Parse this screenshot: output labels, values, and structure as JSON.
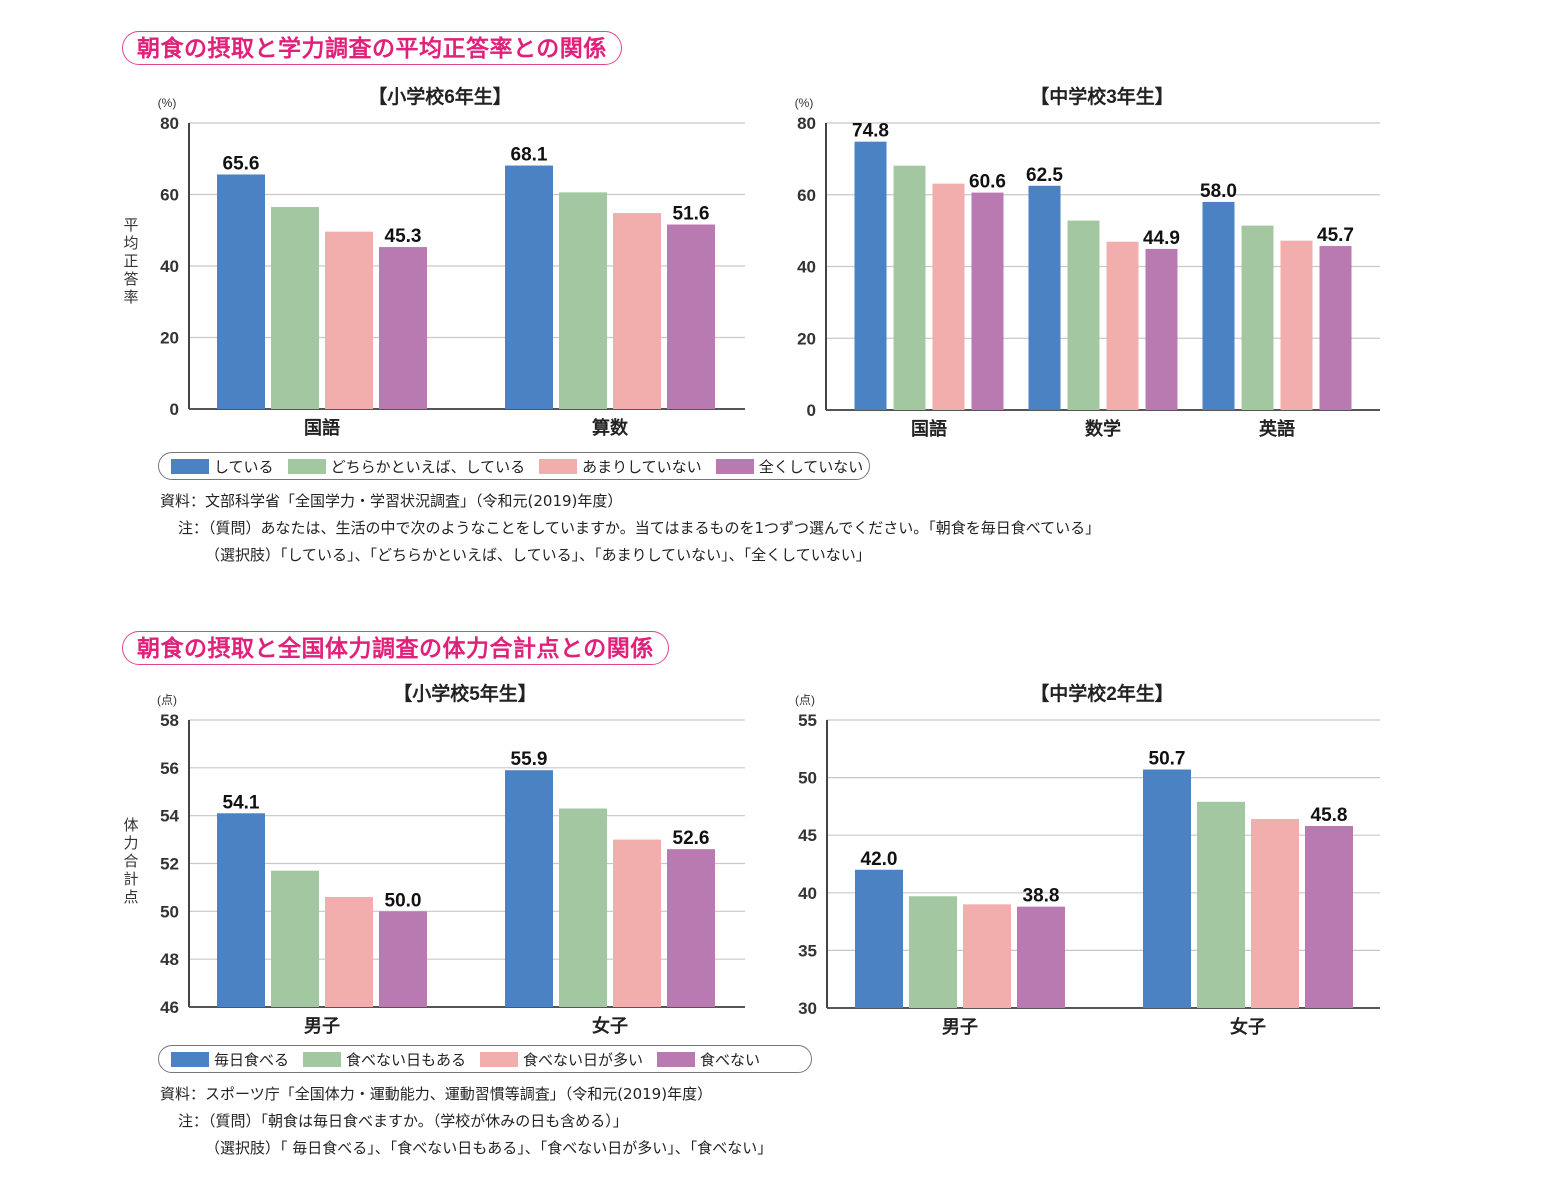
{
  "sections": [
    {
      "title": "朝食の摂取と学力調査の平均正答率との関係",
      "legend": [
        "している",
        "どちらかといえば、している",
        "あまりしていない",
        "全くしていない"
      ],
      "source": "資料：文部科学省「全国学力・学習状況調査」（令和元(2019)年度）",
      "note1": "注：（質問）あなたは、生活の中で次のようなことをしていますか。当てはまるものを1つずつ選んでください。「朝食を毎日食べている」",
      "note2": "（選択肢）「している」、「どちらかといえば、している」、「あまりしていない」、「全くしていない」"
    },
    {
      "title": "朝食の摂取と全国体力調査の体力合計点との関係",
      "legend": [
        "毎日食べる",
        "食べない日もある",
        "食べない日が多い",
        "食べない"
      ],
      "source": "資料：スポーツ庁「全国体力・運動能力、運動習慣等調査」（令和元(2019)年度）",
      "note1": "注：（質問）「朝食は毎日食べますか。（学校が休みの日も含める）」",
      "note2": "（選択肢）「 毎日食べる」、「食べない日もある」、「食べない日が多い」、「食べない」"
    }
  ],
  "colors": [
    "#4a82c3",
    "#a3c8a1",
    "#f2aeac",
    "#b87ab1"
  ],
  "chart_data": [
    {
      "type": "bar",
      "title": "【小学校6年生】",
      "unit": "(%)",
      "ylabel": "平均正答率",
      "xlabel": "",
      "ylim": [
        0,
        80
      ],
      "yticks": [
        0,
        20,
        40,
        60,
        80
      ],
      "grid": true,
      "categories": [
        "国語",
        "算数"
      ],
      "series": [
        {
          "name": "している",
          "values": [
            65.6,
            68.1
          ]
        },
        {
          "name": "どちらかといえば、している",
          "values": [
            56.5,
            60.6
          ]
        },
        {
          "name": "あまりしていない",
          "values": [
            49.6,
            54.8
          ]
        },
        {
          "name": "全くしていない",
          "values": [
            45.3,
            51.6
          ]
        }
      ],
      "data_labels": [
        {
          "series": 0,
          "category": 0,
          "text": "65.6"
        },
        {
          "series": 3,
          "category": 0,
          "text": "45.3"
        },
        {
          "series": 0,
          "category": 1,
          "text": "68.1"
        },
        {
          "series": 3,
          "category": 1,
          "text": "51.6"
        }
      ],
      "legend_position": "bottom"
    },
    {
      "type": "bar",
      "title": "【中学校3年生】",
      "unit": "(%)",
      "ylabel": "",
      "xlabel": "",
      "ylim": [
        0,
        80
      ],
      "yticks": [
        0,
        20,
        40,
        60,
        80
      ],
      "grid": true,
      "categories": [
        "国語",
        "数学",
        "英語"
      ],
      "series": [
        {
          "name": "している",
          "values": [
            74.8,
            62.5,
            58.0
          ]
        },
        {
          "name": "どちらかといえば、している",
          "values": [
            68.1,
            52.8,
            51.4
          ]
        },
        {
          "name": "あまりしていない",
          "values": [
            63.1,
            46.9,
            47.2
          ]
        },
        {
          "name": "全くしていない",
          "values": [
            60.6,
            44.9,
            45.7
          ]
        }
      ],
      "data_labels": [
        {
          "series": 0,
          "category": 0,
          "text": "74.8"
        },
        {
          "series": 3,
          "category": 0,
          "text": "60.6"
        },
        {
          "series": 0,
          "category": 1,
          "text": "62.5"
        },
        {
          "series": 3,
          "category": 1,
          "text": "44.9"
        },
        {
          "series": 0,
          "category": 2,
          "text": "58.0"
        },
        {
          "series": 3,
          "category": 2,
          "text": "45.7"
        }
      ],
      "legend_position": "bottom"
    },
    {
      "type": "bar",
      "title": "【小学校5年生】",
      "unit": "(点)",
      "ylabel": "体力合計点",
      "xlabel": "",
      "ylim": [
        46,
        58
      ],
      "yticks": [
        46,
        48,
        50,
        52,
        54,
        56,
        58
      ],
      "grid": true,
      "categories": [
        "男子",
        "女子"
      ],
      "series": [
        {
          "name": "毎日食べる",
          "values": [
            54.1,
            55.9
          ]
        },
        {
          "name": "食べない日もある",
          "values": [
            51.7,
            54.3
          ]
        },
        {
          "name": "食べない日が多い",
          "values": [
            50.6,
            53.0
          ]
        },
        {
          "name": "食べない",
          "values": [
            50.0,
            52.6
          ]
        }
      ],
      "data_labels": [
        {
          "series": 0,
          "category": 0,
          "text": "54.1"
        },
        {
          "series": 3,
          "category": 0,
          "text": "50.0"
        },
        {
          "series": 0,
          "category": 1,
          "text": "55.9"
        },
        {
          "series": 3,
          "category": 1,
          "text": "52.6"
        }
      ],
      "legend_position": "bottom"
    },
    {
      "type": "bar",
      "title": "【中学校2年生】",
      "unit": "(点)",
      "ylabel": "",
      "xlabel": "",
      "ylim": [
        30,
        55
      ],
      "yticks": [
        30,
        35,
        40,
        45,
        50,
        55
      ],
      "grid": true,
      "categories": [
        "男子",
        "女子"
      ],
      "series": [
        {
          "name": "毎日食べる",
          "values": [
            42.0,
            50.7
          ]
        },
        {
          "name": "食べない日もある",
          "values": [
            39.7,
            47.9
          ]
        },
        {
          "name": "食べない日が多い",
          "values": [
            39.0,
            46.4
          ]
        },
        {
          "name": "食べない",
          "values": [
            38.8,
            45.8
          ]
        }
      ],
      "data_labels": [
        {
          "series": 0,
          "category": 0,
          "text": "42.0"
        },
        {
          "series": 3,
          "category": 0,
          "text": "38.8"
        },
        {
          "series": 0,
          "category": 1,
          "text": "50.7"
        },
        {
          "series": 3,
          "category": 1,
          "text": "45.8"
        }
      ],
      "legend_position": "bottom"
    }
  ]
}
